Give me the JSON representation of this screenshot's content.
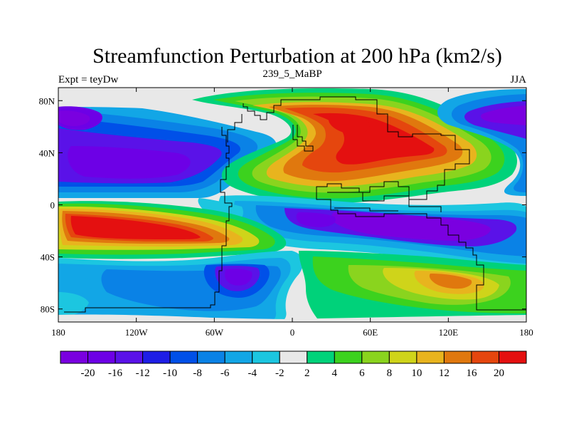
{
  "title": "Streamfunction Perturbation at 200 hPa (km2/s)",
  "subtitle_left": "Expt = teyDw",
  "subtitle_center": "239_5_MaBP",
  "subtitle_right": "JJA",
  "map": {
    "lon_range": [
      -180,
      180
    ],
    "lat_range": [
      -90,
      90
    ],
    "x_ticks": [
      {
        "lon": -180,
        "label": "180"
      },
      {
        "lon": -120,
        "label": "120W"
      },
      {
        "lon": -60,
        "label": "60W"
      },
      {
        "lon": 0,
        "label": "0"
      },
      {
        "lon": 60,
        "label": "60E"
      },
      {
        "lon": 120,
        "label": "120E"
      },
      {
        "lon": 180,
        "label": "180"
      }
    ],
    "y_ticks": [
      {
        "lat": 80,
        "label": "80N"
      },
      {
        "lat": 40,
        "label": "40N"
      },
      {
        "lat": 0,
        "label": "0"
      },
      {
        "lat": -40,
        "label": "40S"
      },
      {
        "lat": -80,
        "label": "80S"
      }
    ],
    "field_features": [
      {
        "name": "tropical-north-pacific-low",
        "lon": -125,
        "lat": 28,
        "value": -18
      },
      {
        "name": "north-pacific-low",
        "lon": -170,
        "lat": 68,
        "value": -16
      },
      {
        "name": "north-atlantic-low",
        "lon": -70,
        "lat": 45,
        "value": -16
      },
      {
        "name": "north-pacific-east-low",
        "lon": 150,
        "lat": 68,
        "value": -16
      },
      {
        "name": "eurasia-high-north",
        "lon": 40,
        "lat": 60,
        "value": 20
      },
      {
        "name": "asia-high-central",
        "lon": 60,
        "lat": 25,
        "value": 18
      },
      {
        "name": "asia-high-east",
        "lon": 115,
        "lat": 42,
        "value": 16
      },
      {
        "name": "south-pacific-high",
        "lon": -120,
        "lat": -20,
        "value": 22
      },
      {
        "name": "indian-ocean-low",
        "lon": 80,
        "lat": -20,
        "value": -20
      },
      {
        "name": "south-atlantic-low",
        "lon": -40,
        "lat": -58,
        "value": -14
      },
      {
        "name": "southern-ocean-high",
        "lon": 125,
        "lat": -55,
        "value": 12
      }
    ]
  },
  "colorbar": {
    "colors": [
      "#7a00e0",
      "#6d00e6",
      "#5a12e8",
      "#1e1ee6",
      "#0050e8",
      "#0a82e6",
      "#12a6e6",
      "#1cc6e0",
      "#e8e8e8",
      "#00d27a",
      "#3cd21e",
      "#8ad41e",
      "#cfd41a",
      "#e8b41e",
      "#e0780e",
      "#e5460e",
      "#e41010"
    ],
    "labels": [
      "-20",
      "-16",
      "-12",
      "-10",
      "-8",
      "-6",
      "-4",
      "-2",
      "2",
      "4",
      "6",
      "8",
      "10",
      "12",
      "16",
      "20"
    ]
  }
}
